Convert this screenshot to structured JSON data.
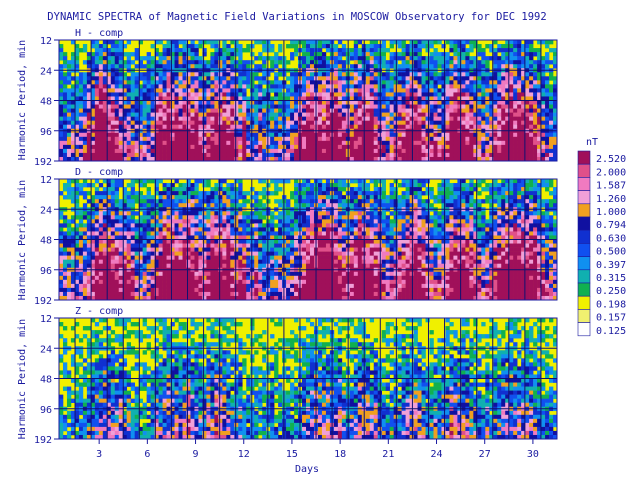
{
  "chart_data": {
    "type": "heatmap",
    "title": "DYNAMIC SPECTRA of Magnetic Field Variations in MOSCOW Observatory for DEC 1992",
    "xlabel": "Days",
    "ylabel": "Harmonic Period, min",
    "xlim": [
      1,
      32
    ],
    "x_ticks": [
      "3",
      "6",
      "9",
      "12",
      "15",
      "18",
      "21",
      "24",
      "27",
      "30"
    ],
    "y_ticks": [
      "12",
      "24",
      "48",
      "96",
      "192"
    ],
    "y_scale": "log2",
    "grid": true,
    "panels": [
      {
        "label": "H - comp",
        "intensity": 0.95
      },
      {
        "label": "D - comp",
        "intensity": 1.0
      },
      {
        "label": "Z - comp",
        "intensity": 0.55
      }
    ],
    "colorbar": {
      "unit": "nT",
      "levels": [
        "2.520",
        "2.000",
        "1.587",
        "1.260",
        "1.000",
        "0.794",
        "0.630",
        "0.500",
        "0.397",
        "0.315",
        "0.250",
        "0.198",
        "0.157",
        "0.125"
      ],
      "colors": [
        "#a0105a",
        "#e0508a",
        "#f07ac0",
        "#f0a0d8",
        "#f0a020",
        "#1010a0",
        "#1030d0",
        "#1050f0",
        "#1090f0",
        "#10b0b0",
        "#10b050",
        "#f0f000",
        "#f0f070",
        "#ffffff"
      ]
    },
    "active_days": [
      4,
      8,
      9,
      11,
      17,
      18,
      20,
      23,
      26,
      29,
      30
    ]
  }
}
